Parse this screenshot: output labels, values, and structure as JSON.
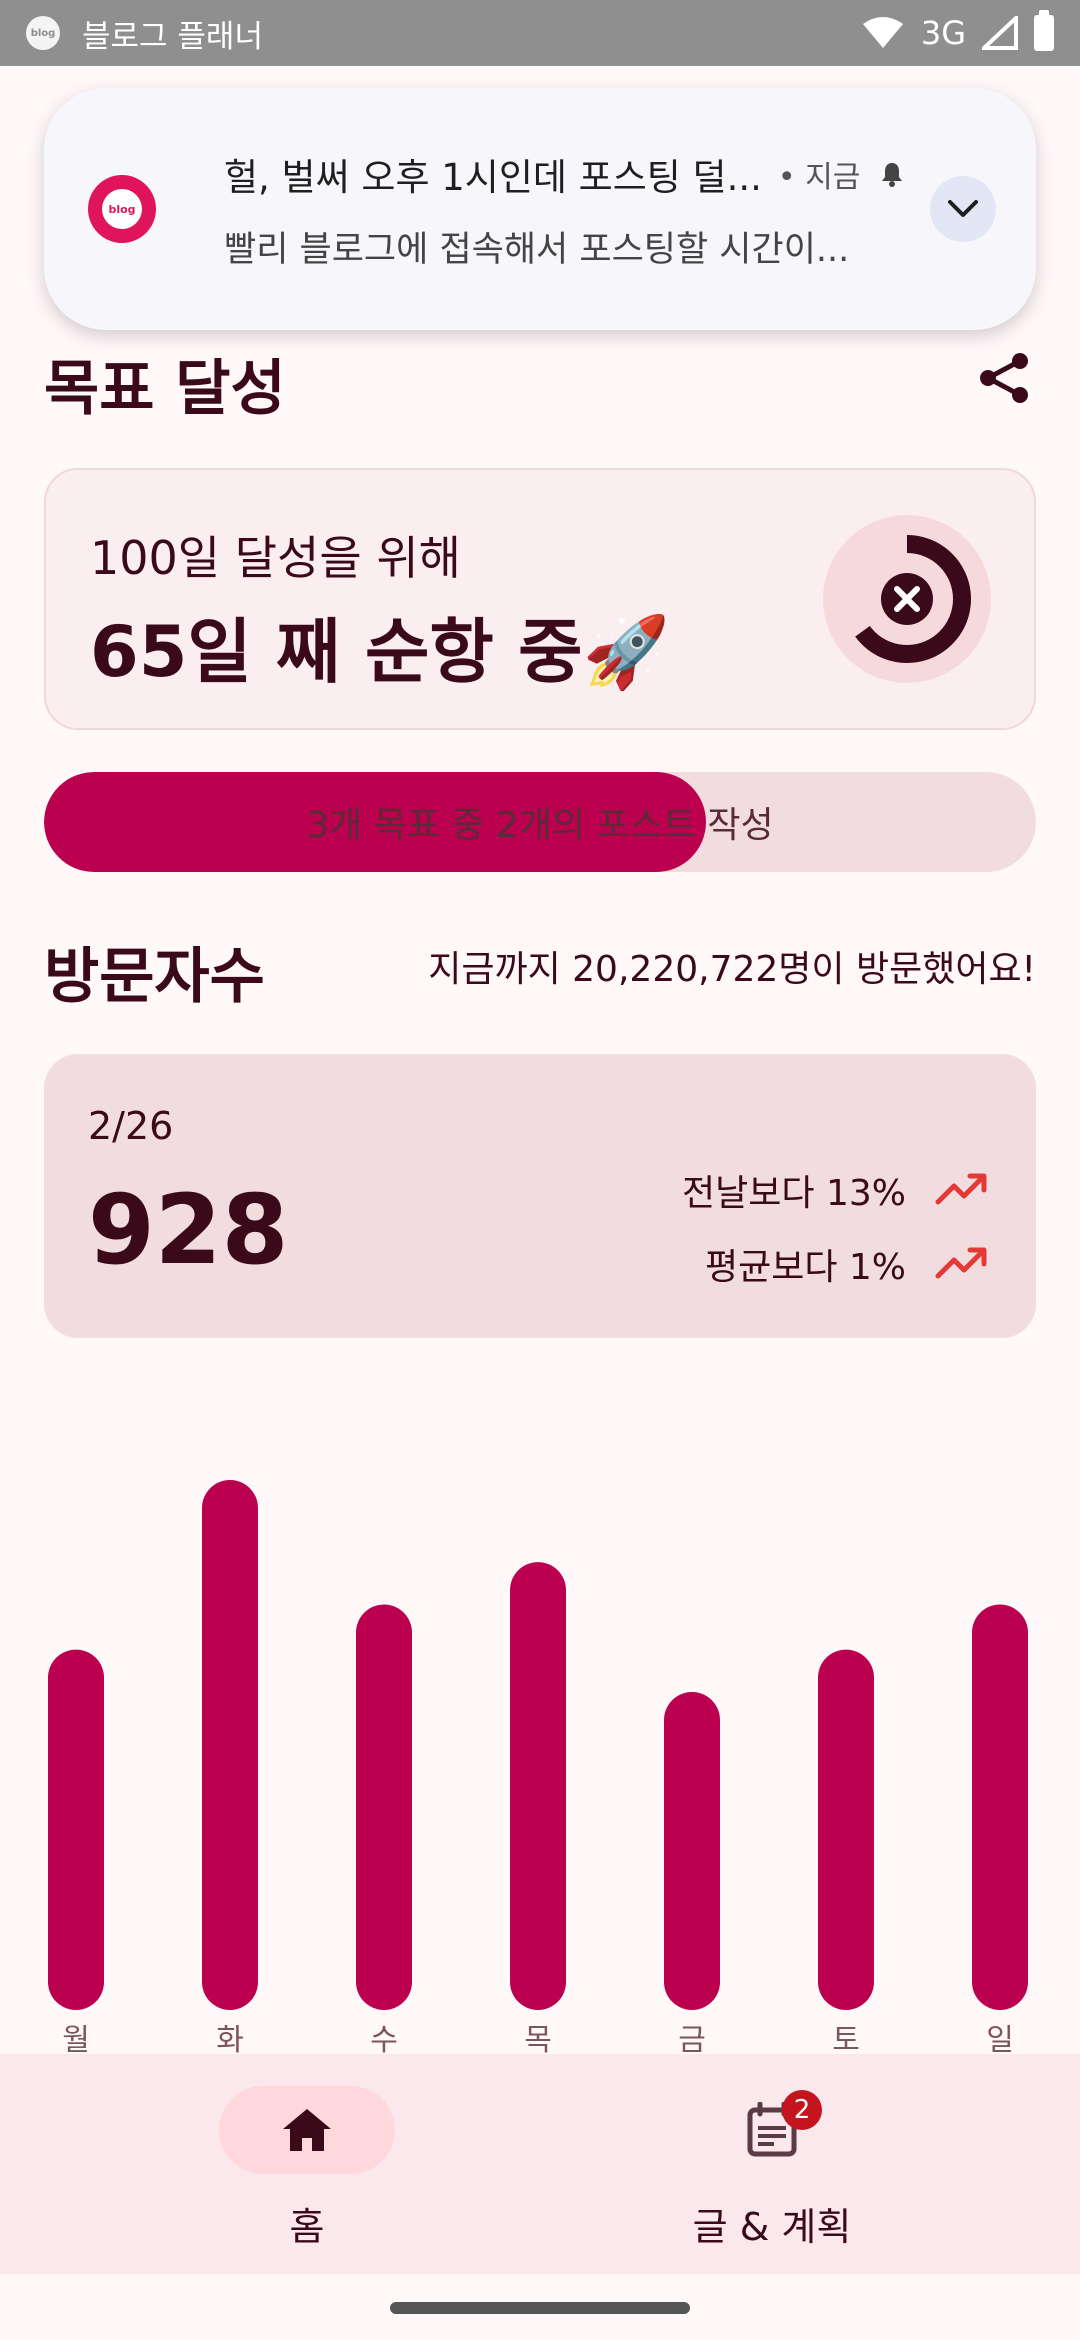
{
  "status_bar": {
    "app_icon_text": "blog",
    "title": "블로그 플래너",
    "network": "3G"
  },
  "notification": {
    "app_icon_text": "blog",
    "title": "헐, 벌써 오후 1시인데 포스팅 덜...",
    "time": "• 지금",
    "body": "빨리 블로그에 접속해서 포스팅할 시간이..."
  },
  "goal": {
    "section_title": "목표 달성",
    "subtitle": "100일 달성을 위해",
    "main": "65일 째 순항 중🚀",
    "progress_label": "3개 목표 중 2개의 포스트 작성",
    "progress_fraction": 0.667,
    "ring_fraction": 0.65
  },
  "visitors": {
    "section_title": "방문자수",
    "total_text": "지금까지 20,220,722명이 방문했어요!",
    "date": "2/26",
    "count": "928",
    "compare_prev": "전날보다 13%",
    "compare_avg": "평균보다 1%"
  },
  "chart_data": {
    "type": "bar",
    "categories": [
      "월",
      "화",
      "수",
      "목",
      "금",
      "토",
      "일"
    ],
    "values": [
      680,
      1000,
      765,
      845,
      600,
      680,
      765
    ],
    "ylim": [
      0,
      1000
    ],
    "color": "#bc0050"
  },
  "bottom_nav": {
    "items": [
      {
        "label": "홈",
        "active": true
      },
      {
        "label": "글 & 계획",
        "badge": "2"
      }
    ]
  },
  "colors": {
    "accent": "#bc0050",
    "text_dark": "#3b0a1a",
    "trend_up": "#e53935"
  }
}
